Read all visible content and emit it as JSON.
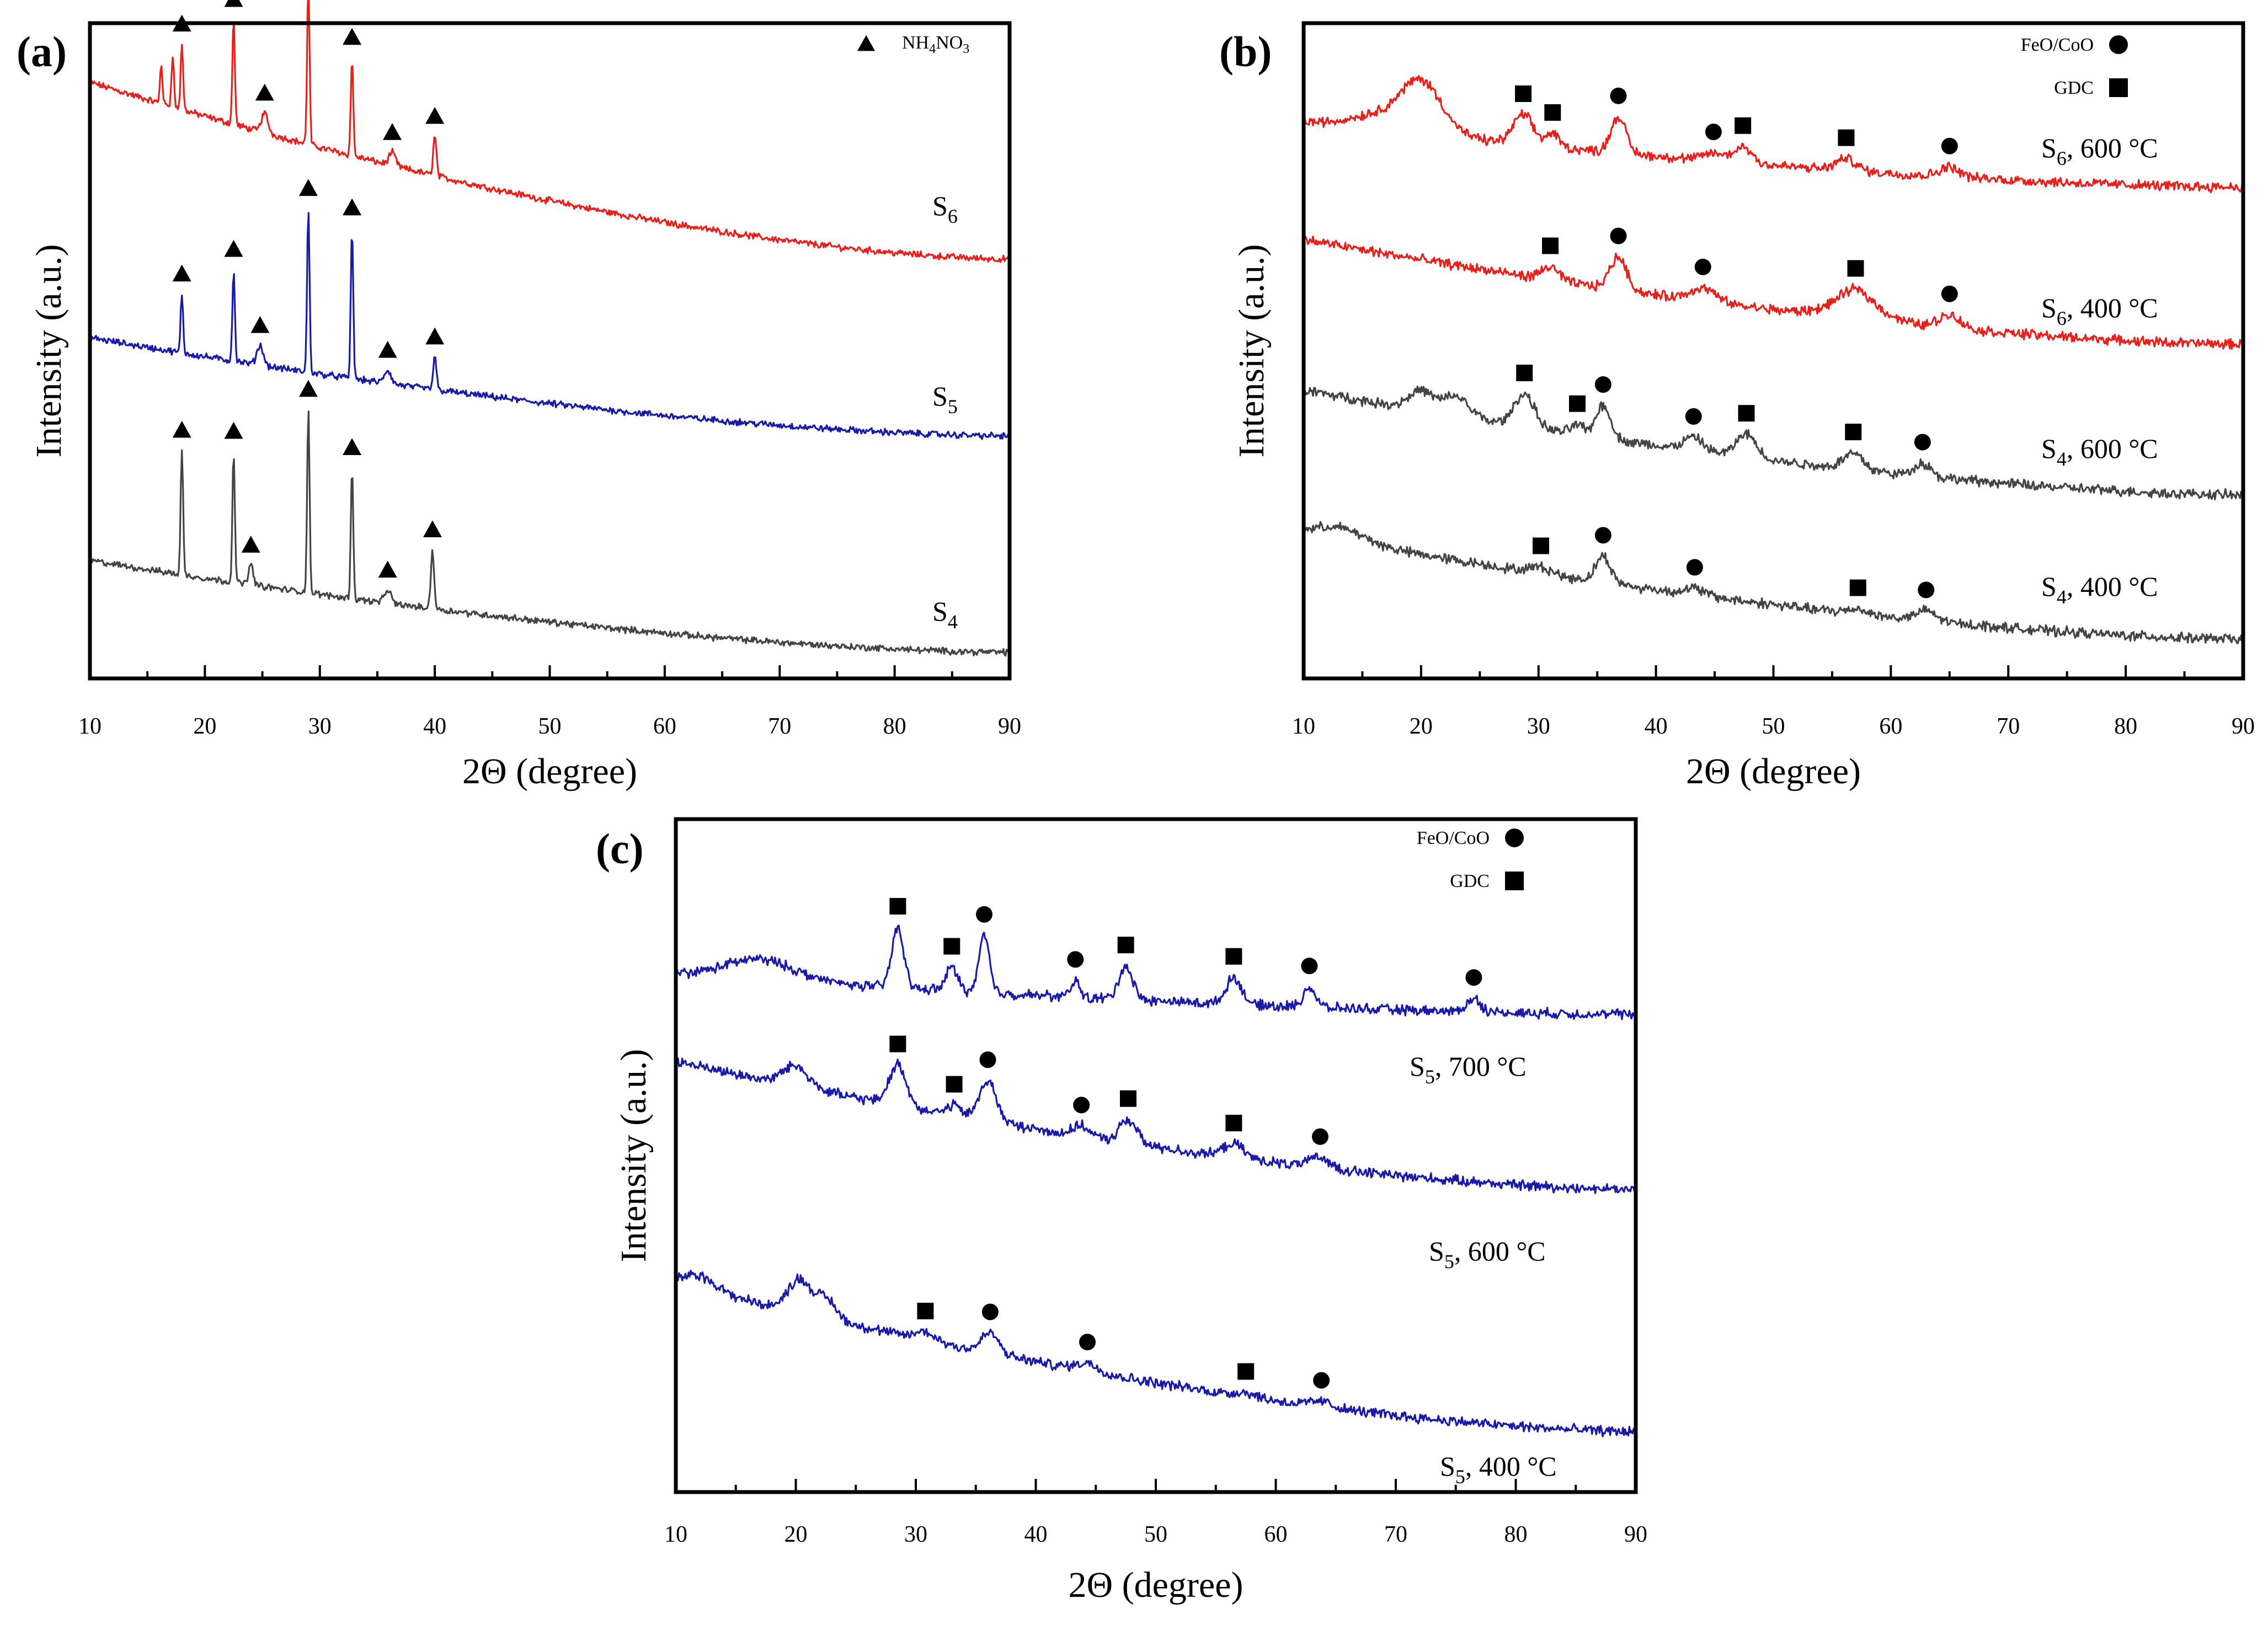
{
  "chart_data": [
    {
      "panel": "(a)",
      "type": "line",
      "title": "",
      "xlabel": "2Θ (degree)",
      "ylabel": "Intensity (a.u.)",
      "xlim": [
        10,
        90
      ],
      "xticks": [
        10,
        20,
        30,
        40,
        50,
        60,
        70,
        80,
        90
      ],
      "legend": [
        {
          "marker": "triangle",
          "label_main": "NH",
          "label_sub1": "4",
          "label_mid": "NO",
          "label_sub2": "3"
        }
      ],
      "series": [
        {
          "name": "S6",
          "label_main": "S",
          "label_sub": "6",
          "color": "#e8201c",
          "baseline_start": 0.91,
          "baseline_end": 0.64,
          "humps": [],
          "peaks": [
            {
              "x": 16.2,
              "h": 0.06,
              "w": 0.15
            },
            {
              "x": 17.2,
              "h": 0.08,
              "w": 0.15
            },
            {
              "x": 18.0,
              "h": 0.1,
              "w": 0.15,
              "marker": "triangle"
            },
            {
              "x": 22.5,
              "h": 0.16,
              "w": 0.15,
              "marker": "triangle"
            },
            {
              "x": 25.2,
              "h": 0.03,
              "w": 0.4,
              "marker": "triangle"
            },
            {
              "x": 29.0,
              "h": 0.25,
              "w": 0.15,
              "marker": "triangle"
            },
            {
              "x": 32.8,
              "h": 0.15,
              "w": 0.15,
              "marker": "triangle"
            },
            {
              "x": 36.3,
              "h": 0.02,
              "w": 0.4,
              "marker": "triangle"
            },
            {
              "x": 40.0,
              "h": 0.06,
              "w": 0.2,
              "marker": "triangle"
            }
          ]
        },
        {
          "name": "S5",
          "label_main": "S",
          "label_sub": "5",
          "color": "#1a1aa8",
          "baseline_start": 0.52,
          "baseline_end": 0.37,
          "humps": [],
          "peaks": [
            {
              "x": 18.0,
              "h": 0.09,
              "w": 0.15,
              "marker": "triangle"
            },
            {
              "x": 22.5,
              "h": 0.14,
              "w": 0.15,
              "marker": "triangle"
            },
            {
              "x": 24.8,
              "h": 0.03,
              "w": 0.4,
              "marker": "triangle"
            },
            {
              "x": 29.0,
              "h": 0.25,
              "w": 0.15,
              "marker": "triangle"
            },
            {
              "x": 32.8,
              "h": 0.23,
              "w": 0.15,
              "marker": "triangle"
            },
            {
              "x": 35.9,
              "h": 0.02,
              "w": 0.4,
              "marker": "triangle"
            },
            {
              "x": 40.0,
              "h": 0.05,
              "w": 0.2,
              "marker": "triangle"
            }
          ]
        },
        {
          "name": "S4",
          "label_main": "S",
          "label_sub": "4",
          "color": "#444444",
          "baseline_start": 0.18,
          "baseline_end": 0.04,
          "humps": [],
          "peaks": [
            {
              "x": 18.0,
              "h": 0.19,
              "w": 0.15,
              "marker": "triangle"
            },
            {
              "x": 22.5,
              "h": 0.2,
              "w": 0.15,
              "marker": "triangle"
            },
            {
              "x": 24.0,
              "h": 0.03,
              "w": 0.3,
              "marker": "triangle"
            },
            {
              "x": 29.0,
              "h": 0.28,
              "w": 0.15,
              "marker": "triangle"
            },
            {
              "x": 32.8,
              "h": 0.2,
              "w": 0.15,
              "marker": "triangle"
            },
            {
              "x": 35.9,
              "h": 0.02,
              "w": 0.4,
              "marker": "triangle"
            },
            {
              "x": 39.8,
              "h": 0.09,
              "w": 0.2,
              "marker": "triangle"
            }
          ]
        }
      ]
    },
    {
      "panel": "(b)",
      "type": "line",
      "title": "",
      "xlabel": "2Θ (degree)",
      "ylabel": "Intensity (a.u.)",
      "xlim": [
        10,
        90
      ],
      "xticks": [
        10,
        20,
        30,
        40,
        50,
        60,
        70,
        80,
        90
      ],
      "legend": [
        {
          "marker": "circle",
          "label": "FeO/CoO"
        },
        {
          "marker": "square",
          "label": "GDC"
        }
      ],
      "series": [
        {
          "name": "S6, 600 °C",
          "label_main": "S",
          "label_sub": "6",
          "label_rest": ", 600 °C",
          "color": "#e8201c",
          "baseline_start": 0.85,
          "baseline_end": 0.75,
          "humps": [
            {
              "x": 20,
              "h": 0.08,
              "w": 2.5
            },
            {
              "x": 16,
              "h": 0.02,
              "w": 3
            }
          ],
          "peaks": [
            {
              "x": 28.7,
              "h": 0.045,
              "w": 1.2,
              "marker": "square"
            },
            {
              "x": 31.2,
              "h": 0.02,
              "w": 0.8,
              "marker": "square"
            },
            {
              "x": 36.8,
              "h": 0.055,
              "w": 0.9,
              "marker": "circle"
            },
            {
              "x": 44.9,
              "h": 0.012,
              "w": 1.2,
              "marker": "circle"
            },
            {
              "x": 47.4,
              "h": 0.025,
              "w": 1.1,
              "marker": "square"
            },
            {
              "x": 56.2,
              "h": 0.018,
              "w": 1.2,
              "marker": "square"
            },
            {
              "x": 65.0,
              "h": 0.015,
              "w": 1.2,
              "marker": "circle"
            }
          ]
        },
        {
          "name": "S6, 400 °C",
          "label_main": "S",
          "label_sub": "6",
          "label_rest": ", 400 °C",
          "color": "#e8201c",
          "baseline_start": 0.67,
          "baseline_end": 0.51,
          "humps": [
            {
              "x": 57,
              "h": 0.03,
              "w": 3
            }
          ],
          "peaks": [
            {
              "x": 31.0,
              "h": 0.02,
              "w": 1.0,
              "marker": "square"
            },
            {
              "x": 36.8,
              "h": 0.05,
              "w": 1.0,
              "marker": "circle"
            },
            {
              "x": 44.0,
              "h": 0.02,
              "w": 1.5,
              "marker": "circle"
            },
            {
              "x": 57.0,
              "h": 0.015,
              "w": 1.5,
              "marker": "square"
            },
            {
              "x": 65.0,
              "h": 0.02,
              "w": 1.3,
              "marker": "circle"
            }
          ]
        },
        {
          "name": "S4, 600 °C",
          "label_main": "S",
          "label_sub": "4",
          "label_rest": ", 600 °C",
          "color": "#444444",
          "baseline_start": 0.44,
          "baseline_end": 0.28,
          "humps": [
            {
              "x": 20,
              "h": 0.03,
              "w": 1.5
            },
            {
              "x": 23,
              "h": 0.03,
              "w": 1.5
            }
          ],
          "peaks": [
            {
              "x": 28.8,
              "h": 0.05,
              "w": 1.2,
              "marker": "square"
            },
            {
              "x": 33.3,
              "h": 0.015,
              "w": 0.8,
              "marker": "square"
            },
            {
              "x": 35.5,
              "h": 0.05,
              "w": 0.9,
              "marker": "circle"
            },
            {
              "x": 43.2,
              "h": 0.02,
              "w": 1.2,
              "marker": "circle"
            },
            {
              "x": 47.7,
              "h": 0.035,
              "w": 1.2,
              "marker": "square"
            },
            {
              "x": 56.8,
              "h": 0.025,
              "w": 1.2,
              "marker": "square"
            },
            {
              "x": 62.7,
              "h": 0.02,
              "w": 1.0,
              "marker": "circle"
            }
          ]
        },
        {
          "name": "S4, 400 °C",
          "label_main": "S",
          "label_sub": "4",
          "label_rest": ", 400 °C",
          "color": "#444444",
          "baseline_start": 0.22,
          "baseline_end": 0.06,
          "humps": [
            {
              "x": 13,
              "h": 0.02,
              "w": 3
            }
          ],
          "peaks": [
            {
              "x": 30.2,
              "h": 0.01,
              "w": 1.2,
              "marker": "square"
            },
            {
              "x": 35.5,
              "h": 0.04,
              "w": 0.9,
              "marker": "circle"
            },
            {
              "x": 43.3,
              "h": 0.01,
              "w": 1.2,
              "marker": "circle"
            },
            {
              "x": 57.2,
              "h": 0.008,
              "w": 1.2,
              "marker": "square"
            },
            {
              "x": 63.0,
              "h": 0.015,
              "w": 1.2,
              "marker": "circle"
            }
          ]
        }
      ]
    },
    {
      "panel": "(c)",
      "type": "line",
      "title": "",
      "xlabel": "2Θ (degree)",
      "ylabel": "Intensity (a.u.)",
      "xlim": [
        10,
        90
      ],
      "xticks": [
        10,
        20,
        30,
        40,
        50,
        60,
        70,
        80,
        90
      ],
      "legend": [
        {
          "marker": "circle",
          "label": "FeO/CoO"
        },
        {
          "marker": "square",
          "label": "GDC"
        }
      ],
      "series": [
        {
          "name": "S5, 700 °C",
          "label_main": "S",
          "label_sub": "5",
          "label_rest": ", 700 °C",
          "color": "#1a1aa8",
          "baseline_start": 0.77,
          "baseline_end": 0.71,
          "humps": [
            {
              "x": 17,
              "h": 0.03,
              "w": 4
            }
          ],
          "peaks": [
            {
              "x": 28.5,
              "h": 0.09,
              "w": 0.7,
              "marker": "square"
            },
            {
              "x": 33.0,
              "h": 0.035,
              "w": 0.7,
              "marker": "square"
            },
            {
              "x": 35.7,
              "h": 0.085,
              "w": 0.6,
              "marker": "circle"
            },
            {
              "x": 43.3,
              "h": 0.025,
              "w": 0.5,
              "marker": "circle"
            },
            {
              "x": 47.5,
              "h": 0.05,
              "w": 0.8,
              "marker": "square"
            },
            {
              "x": 56.5,
              "h": 0.04,
              "w": 0.9,
              "marker": "square"
            },
            {
              "x": 62.8,
              "h": 0.03,
              "w": 0.7,
              "marker": "circle"
            },
            {
              "x": 76.5,
              "h": 0.02,
              "w": 0.8,
              "marker": "circle"
            }
          ]
        },
        {
          "name": "S5, 600 °C",
          "label_main": "S",
          "label_sub": "5",
          "label_rest": ", 600 °C",
          "color": "#1a1aa8",
          "baseline_start": 0.64,
          "baseline_end": 0.45,
          "humps": [
            {
              "x": 20,
              "h": 0.03,
              "w": 1.5
            }
          ],
          "peaks": [
            {
              "x": 28.5,
              "h": 0.06,
              "w": 1.0,
              "marker": "square"
            },
            {
              "x": 33.2,
              "h": 0.015,
              "w": 0.8,
              "marker": "square"
            },
            {
              "x": 36.0,
              "h": 0.06,
              "w": 1.0,
              "marker": "circle"
            },
            {
              "x": 43.8,
              "h": 0.015,
              "w": 1.0,
              "marker": "circle"
            },
            {
              "x": 47.7,
              "h": 0.035,
              "w": 1.0,
              "marker": "square"
            },
            {
              "x": 56.5,
              "h": 0.02,
              "w": 1.2,
              "marker": "square"
            },
            {
              "x": 63.7,
              "h": 0.015,
              "w": 1.2,
              "marker": "circle"
            }
          ]
        },
        {
          "name": "S5, 400 °C",
          "label_main": "S",
          "label_sub": "5",
          "label_rest": ", 400 °C",
          "color": "#1a1aa8",
          "baseline_start": 0.31,
          "baseline_end": 0.09,
          "humps": [
            {
              "x": 20.3,
              "h": 0.05,
              "w": 1.3
            },
            {
              "x": 22.5,
              "h": 0.03,
              "w": 1.2
            },
            {
              "x": 12,
              "h": 0.02,
              "w": 2
            }
          ],
          "peaks": [
            {
              "x": 30.8,
              "h": 0.012,
              "w": 1.2,
              "marker": "square"
            },
            {
              "x": 36.2,
              "h": 0.03,
              "w": 1.0,
              "marker": "circle"
            },
            {
              "x": 44.3,
              "h": 0.012,
              "w": 1.3,
              "marker": "circle"
            },
            {
              "x": 57.5,
              "h": 0.006,
              "w": 1.2,
              "marker": "square"
            },
            {
              "x": 63.8,
              "h": 0.008,
              "w": 1.2,
              "marker": "circle"
            }
          ]
        }
      ]
    }
  ]
}
